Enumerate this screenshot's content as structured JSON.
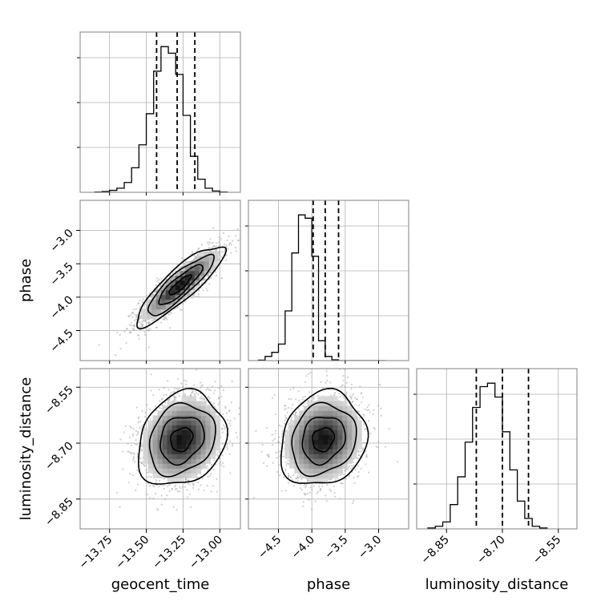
{
  "chart_data": {
    "type": "corner",
    "grid": true,
    "parameters": [
      "geocent_time",
      "phase",
      "luminosity_distance"
    ],
    "axes": {
      "geocent_time": {
        "label": "geocent_time",
        "range": [
          -13.95,
          -12.86
        ],
        "ticks": [
          -13.75,
          -13.5,
          -13.25,
          -13.0
        ],
        "tick_labels": [
          "−13.75",
          "−13.50",
          "−13.25",
          "−13.00"
        ]
      },
      "phase": {
        "label": "phase",
        "range": [
          -4.95,
          -2.55
        ],
        "ticks": [
          -4.5,
          -4.0,
          -3.5,
          -3.0
        ],
        "tick_labels": [
          "−4.5",
          "−4.0",
          "−3.5",
          "−3.0"
        ]
      },
      "luminosity_distance": {
        "label": "luminosity_distance",
        "range": [
          -8.93,
          -8.5
        ],
        "ticks": [
          -8.85,
          -8.7,
          -8.55
        ],
        "tick_labels": [
          "−8.85",
          "−8.70",
          "−8.55"
        ]
      }
    },
    "marginals": [
      {
        "parameter": "geocent_time",
        "bins_start": -13.85,
        "bin_width": 0.05,
        "counts": [
          2,
          5,
          12,
          25,
          60,
          150,
          290,
          480,
          740,
          890,
          850,
          720,
          470,
          220,
          80,
          25,
          8,
          2
        ],
        "quantiles": [
          -13.43,
          -13.29,
          -13.17
        ]
      },
      {
        "parameter": "phase",
        "bins_start": -4.8,
        "bin_width": 0.1,
        "counts": [
          3,
          25,
          50,
          100,
          300,
          650,
          880,
          860,
          630,
          120,
          25,
          5,
          0,
          0,
          0,
          0,
          0,
          0,
          0
        ],
        "quantiles": [
          -3.98,
          -3.8,
          -3.6
        ]
      },
      {
        "parameter": "luminosity_distance",
        "bins_start": -8.9,
        "bin_width": 0.02,
        "counts": [
          5,
          15,
          40,
          140,
          300,
          500,
          700,
          820,
          840,
          760,
          560,
          340,
          160,
          60,
          15,
          5
        ],
        "quantiles": [
          -8.77,
          -8.7,
          -8.63
        ]
      }
    ],
    "joint": [
      {
        "x": "geocent_time",
        "y": "phase",
        "center": [
          -13.27,
          -3.82
        ],
        "sd": [
          0.13,
          0.26
        ],
        "corr": 0.87
      },
      {
        "x": "geocent_time",
        "y": "luminosity_distance",
        "center": [
          -13.26,
          -8.69
        ],
        "sd": [
          0.13,
          0.055
        ],
        "corr": 0.2
      },
      {
        "x": "phase",
        "y": "luminosity_distance",
        "center": [
          -3.83,
          -8.69
        ],
        "sd": [
          0.28,
          0.055
        ],
        "corr": 0.15
      }
    ]
  }
}
